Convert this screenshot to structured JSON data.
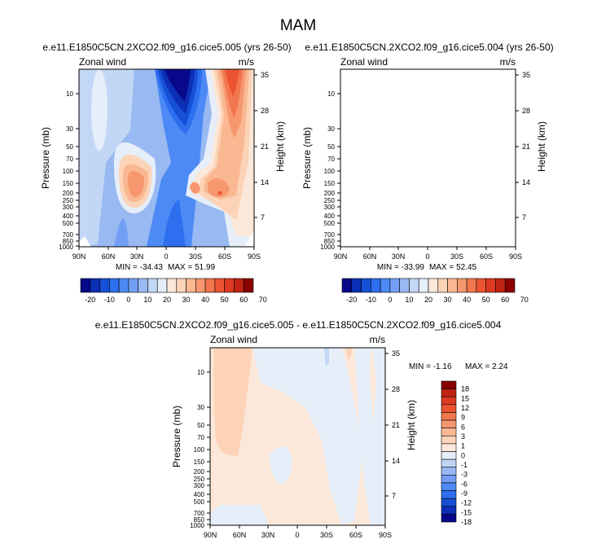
{
  "figure": {
    "main_title": "MAM"
  },
  "chart_data": [
    {
      "type": "heatmap",
      "title": "e.e11.E1850C5CN.2XCO2.f09_g16.cice5.005 (yrs 26-50)",
      "left_label": "Zonal wind",
      "units": "m/s",
      "xlabel": "",
      "ylabel": "Pressure (mb)",
      "y2label": "Height (km)",
      "x_ticks": [
        "90N",
        "60N",
        "30N",
        "0",
        "30S",
        "60S",
        "90S"
      ],
      "y_ticks": [
        "10",
        "30",
        "50",
        "70",
        "100",
        "150",
        "200",
        "250",
        "300",
        "400",
        "500",
        "700",
        "850",
        "1000"
      ],
      "y2_ticks": [
        "35",
        "28",
        "21",
        "14",
        "7"
      ],
      "min_text": "MIN = -34.43",
      "max_text": "MAX = 51.99",
      "min": -34.43,
      "max": 51.99
    },
    {
      "type": "heatmap",
      "title": "e.e11.E1850C5CN.2XCO2.f09_g16.cice5.004 (yrs 26-50)",
      "left_label": "Zonal wind",
      "units": "m/s",
      "xlabel": "",
      "ylabel": "Pressure (mb)",
      "y2label": "Height (km)",
      "x_ticks": [
        "90N",
        "60N",
        "30N",
        "0",
        "30S",
        "60S",
        "90S"
      ],
      "y_ticks": [
        "10",
        "30",
        "50",
        "70",
        "100",
        "150",
        "200",
        "250",
        "300",
        "400",
        "500",
        "700",
        "850",
        "1000"
      ],
      "y2_ticks": [
        "35",
        "28",
        "21",
        "14",
        "7"
      ],
      "min_text": "MIN = -33.99",
      "max_text": "MAX = 52.45",
      "min": -33.99,
      "max": 52.45
    },
    {
      "type": "heatmap",
      "title": "e.e11.E1850C5CN.2XCO2.f09_g16.cice5.005 - e.e11.E1850C5CN.2XCO2.f09_g16.cice5.004",
      "left_label": "Zonal wind",
      "units": "m/s",
      "xlabel": "",
      "ylabel": "Pressure (mb)",
      "y2label": "Height (km)",
      "x_ticks": [
        "90N",
        "60N",
        "30N",
        "0",
        "30S",
        "60S",
        "90S"
      ],
      "y_ticks": [
        "10",
        "30",
        "50",
        "70",
        "100",
        "150",
        "200",
        "250",
        "300",
        "400",
        "500",
        "700",
        "850",
        "1000"
      ],
      "y2_ticks": [
        "35",
        "28",
        "21",
        "14",
        "7"
      ],
      "min_text": "MIN = -1.16",
      "max_text": "MAX =   2.24",
      "min": -1.16,
      "max": 2.24
    }
  ],
  "colorbars": {
    "top": {
      "colors": [
        "#08088a",
        "#0b2fb5",
        "#1650d6",
        "#2e6ff0",
        "#4d8af5",
        "#729ff5",
        "#98b9f2",
        "#c2d6f5",
        "#e5eef9",
        "#fbe8da",
        "#fcd3b6",
        "#f9b892",
        "#f69770",
        "#f2764e",
        "#ec5331",
        "#dd3a23",
        "#c02312",
        "#8b0000"
      ],
      "labels": [
        "-20",
        "-10",
        "0",
        "10",
        "20",
        "30",
        "40",
        "50",
        "60",
        "70"
      ]
    },
    "bottom": {
      "colors": [
        "#8b0000",
        "#c02312",
        "#dd3a23",
        "#ec5331",
        "#f2764e",
        "#f69770",
        "#f9b892",
        "#fcd3b6",
        "#fbe8da",
        "#e5eef9",
        "#c2d6f5",
        "#98b9f2",
        "#729ff5",
        "#4d8af5",
        "#2e6ff0",
        "#1650d6",
        "#0b2fb5",
        "#08088a"
      ],
      "labels": [
        "18",
        "15",
        "12",
        "9",
        "6",
        "3",
        "1",
        "0",
        "-1",
        "-3",
        "-6",
        "-9",
        "-12",
        "-15",
        "-18"
      ]
    }
  }
}
